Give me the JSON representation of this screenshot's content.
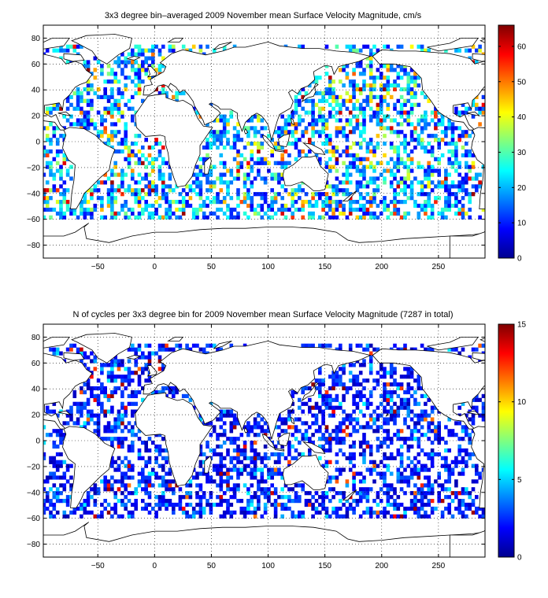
{
  "chart_data": [
    {
      "type": "heatmap",
      "title": "3x3 degree bin–averaged 2009 November mean Surface Velocity Magnitude, cm/s",
      "xlabel": "",
      "ylabel": "",
      "xlim": [
        -98,
        291
      ],
      "ylim": [
        -90,
        90
      ],
      "x_ticks": [
        -50,
        0,
        50,
        100,
        150,
        200,
        250
      ],
      "y_ticks": [
        -80,
        -60,
        -40,
        -20,
        0,
        20,
        40,
        60,
        80
      ],
      "grid": true,
      "colormap": "jet",
      "colorbar": {
        "range": [
          0,
          66
        ],
        "ticks": [
          0,
          10,
          20,
          30,
          40,
          50,
          60
        ]
      },
      "bin_size_deg": 3,
      "cell_density": 0.48,
      "value_model": {
        "median": 18,
        "high_tail_max": 66
      }
    },
    {
      "type": "heatmap",
      "title": "N of cycles per 3x3 degree bin for 2009 November mean Surface Velocity Magnitude (7287 in total)",
      "xlabel": "",
      "ylabel": "",
      "xlim": [
        -98,
        291
      ],
      "ylim": [
        -90,
        90
      ],
      "x_ticks": [
        -50,
        0,
        50,
        100,
        150,
        200,
        250
      ],
      "y_ticks": [
        -80,
        -60,
        -40,
        -20,
        0,
        20,
        40,
        60,
        80
      ],
      "grid": true,
      "colormap": "jet",
      "colorbar": {
        "range": [
          0,
          15
        ],
        "ticks": [
          0,
          5,
          10,
          15
        ]
      },
      "bin_size_deg": 3,
      "cell_density": 0.48,
      "value_model": {
        "median": 2,
        "high_tail_max": 15
      }
    }
  ]
}
